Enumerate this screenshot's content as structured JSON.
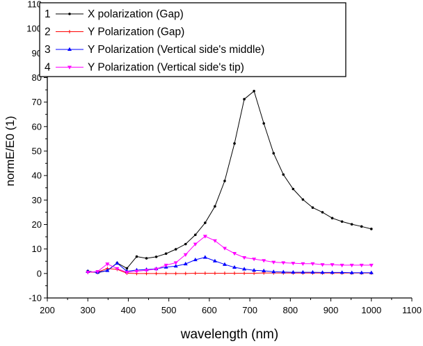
{
  "chart_data": {
    "type": "line",
    "title": "",
    "xlabel": "wavelength (nm)",
    "ylabel": "normE/E0 (1)",
    "xlim": [
      200,
      1100
    ],
    "ylim": [
      -10,
      110
    ],
    "xticks": [
      "200",
      "300",
      "400",
      "500",
      "600",
      "700",
      "800",
      "900",
      "1000",
      "1100"
    ],
    "yticks": [
      "110",
      "100",
      "90",
      "80",
      "70",
      "60",
      "50",
      "40",
      "30",
      "20",
      "10",
      "0",
      "-10"
    ],
    "grid": false,
    "legend_position": "top-left",
    "x_start": 300,
    "x_end": 1000,
    "num_points": 30,
    "series": [
      {
        "id": "1",
        "name": "X polarization (Gap)",
        "color": "#000000",
        "marker": "dot",
        "values": [
          1.0,
          0.3,
          1.2,
          4.3,
          2.1,
          6.9,
          6.2,
          6.8,
          8.1,
          9.9,
          12.0,
          15.8,
          20.7,
          27.4,
          37.8,
          53.1,
          71.2,
          74.5,
          61.3,
          49.1,
          40.4,
          34.5,
          30.2,
          26.9,
          25.0,
          22.6,
          21.2,
          20.1,
          19.2,
          18.2
        ]
      },
      {
        "id": "2",
        "name": "Y Polarization (Gap)",
        "color": "#ff0000",
        "marker": "plus",
        "values": [
          0.5,
          0.6,
          2.0,
          1.7,
          0.1,
          0.0,
          0.0,
          0.0,
          0.0,
          0.0,
          0.0,
          0.1,
          0.1,
          0.1,
          0.1,
          0.1,
          0.1,
          0.1,
          0.2,
          0.2,
          0.2,
          0.2,
          0.2,
          0.2,
          0.2,
          0.2,
          0.2,
          0.2,
          0.2,
          0.2
        ]
      },
      {
        "id": "3",
        "name": "Y Polarization (Vertical side's middle)",
        "color": "#0000ff",
        "marker": "triangle-up",
        "values": [
          0.8,
          0.5,
          1.2,
          4.2,
          0.9,
          1.4,
          1.6,
          1.9,
          2.6,
          3.0,
          3.9,
          5.6,
          6.6,
          5.1,
          3.7,
          2.5,
          1.8,
          1.3,
          1.1,
          0.7,
          0.6,
          0.5,
          0.5,
          0.5,
          0.4,
          0.4,
          0.4,
          0.3,
          0.3,
          0.3
        ]
      },
      {
        "id": "4",
        "name": "Y Polarization (Vertical side's tip)",
        "color": "#ff00ff",
        "marker": "triangle-down",
        "values": [
          0.5,
          0.8,
          3.9,
          2.0,
          0.5,
          0.9,
          1.3,
          1.8,
          3.4,
          4.4,
          7.7,
          12.0,
          15.2,
          13.4,
          10.3,
          8.2,
          6.5,
          5.9,
          5.3,
          4.6,
          4.4,
          4.2,
          4.0,
          4.0,
          3.6,
          3.6,
          3.4,
          3.4,
          3.4,
          3.4
        ]
      }
    ]
  }
}
